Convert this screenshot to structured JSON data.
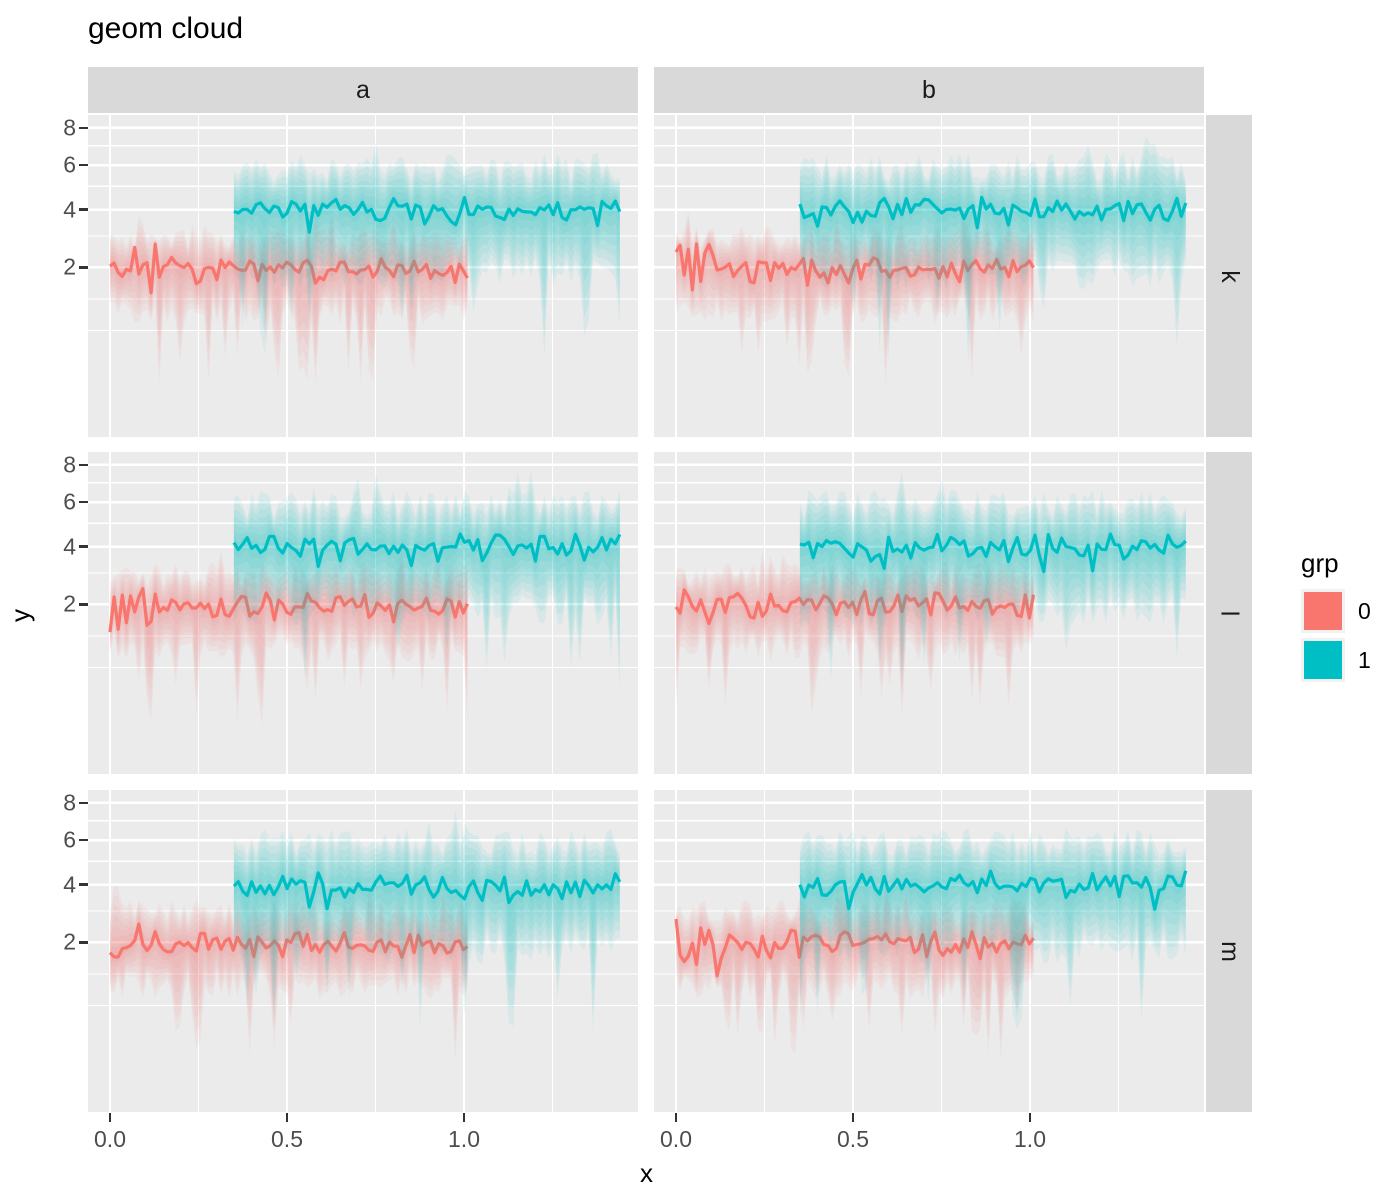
{
  "title": "geom cloud",
  "axes": {
    "x": {
      "label": "x",
      "tick_labels": [
        "0.0",
        "0.5",
        "1.0"
      ],
      "tick_values": [
        0,
        0.5,
        1.0
      ],
      "minor_tick_values": [
        0.25,
        0.75,
        1.25
      ]
    },
    "y": {
      "label": "y",
      "tick_labels": [
        "8",
        "6",
        "4",
        "2"
      ],
      "tick_values": [
        8,
        6,
        4,
        2
      ],
      "minor_tick_values": [
        7,
        5,
        3
      ],
      "transform": "sqrt"
    }
  },
  "facets": {
    "cols": [
      {
        "label": "a"
      },
      {
        "label": "b"
      }
    ],
    "rows": [
      {
        "label": "k"
      },
      {
        "label": "l"
      },
      {
        "label": "m"
      }
    ]
  },
  "legend": {
    "title": "grp",
    "entries": [
      {
        "label": "0",
        "color": "#F8766D"
      },
      {
        "label": "1",
        "color": "#00BFC4"
      }
    ]
  },
  "style": {
    "panel_bg": "#EBEBEB",
    "strip_bg": "#D9D9D9",
    "grid_color": "#FFFFFF",
    "axis_text_color": "#4D4D4D",
    "tick_mark_color": "#333333",
    "cloud_layer_opacity": 0.08,
    "cloud_layers": 7
  },
  "chart_data": {
    "type": "area",
    "description": "Faceted 'cloud' plot (facet grid: columns a,b by rows k,l,m). Each panel shows two jagged mean lines surrounded by fuzzy fading uncertainty clouds with vertical streaks. Group 0 (salmon) fluctuates around y=2 for x in [0,1]; group 1 (teal) fluctuates around y=4 for x in [0.35,1.44]. Y axis is sqrt-transformed with labeled breaks 2,4,6,8; x breaks 0.0,0.5,1.0.",
    "x_breaks": [
      0,
      0.5,
      1.0
    ],
    "y_breaks": [
      2,
      4,
      6,
      8
    ],
    "series": [
      {
        "name": "0",
        "color": "#F8766D",
        "x_start": 0.0,
        "x_end": 1.01,
        "base_y": 2,
        "n_points": 88,
        "line_jitter": 0.13,
        "start_burst": true,
        "upper_spread": [
          1.3,
          1.7
        ],
        "lower_spread": [
          0.35,
          0.6
        ],
        "tail_prob": 0.18,
        "tail_depth": [
          0.04,
          0.4
        ]
      },
      {
        "name": "1",
        "color": "#00BFC4",
        "x_start": 0.35,
        "x_end": 1.44,
        "base_y": 4,
        "n_points": 88,
        "line_jitter": 0.1,
        "start_burst": false,
        "upper_spread": [
          1.3,
          1.66
        ],
        "lower_spread": [
          0.35,
          0.58
        ],
        "tail_prob": 0.12,
        "tail_depth": [
          0.12,
          0.5
        ]
      }
    ],
    "panels": [
      {
        "col": "a",
        "row": "k",
        "seeds": [
          11,
          21
        ]
      },
      {
        "col": "b",
        "row": "k",
        "seeds": [
          31,
          41
        ]
      },
      {
        "col": "a",
        "row": "l",
        "seeds": [
          51,
          61
        ]
      },
      {
        "col": "b",
        "row": "l",
        "seeds": [
          71,
          81
        ]
      },
      {
        "col": "a",
        "row": "m",
        "seeds": [
          91,
          101
        ]
      },
      {
        "col": "b",
        "row": "m",
        "seeds": [
          111,
          121
        ]
      }
    ]
  }
}
